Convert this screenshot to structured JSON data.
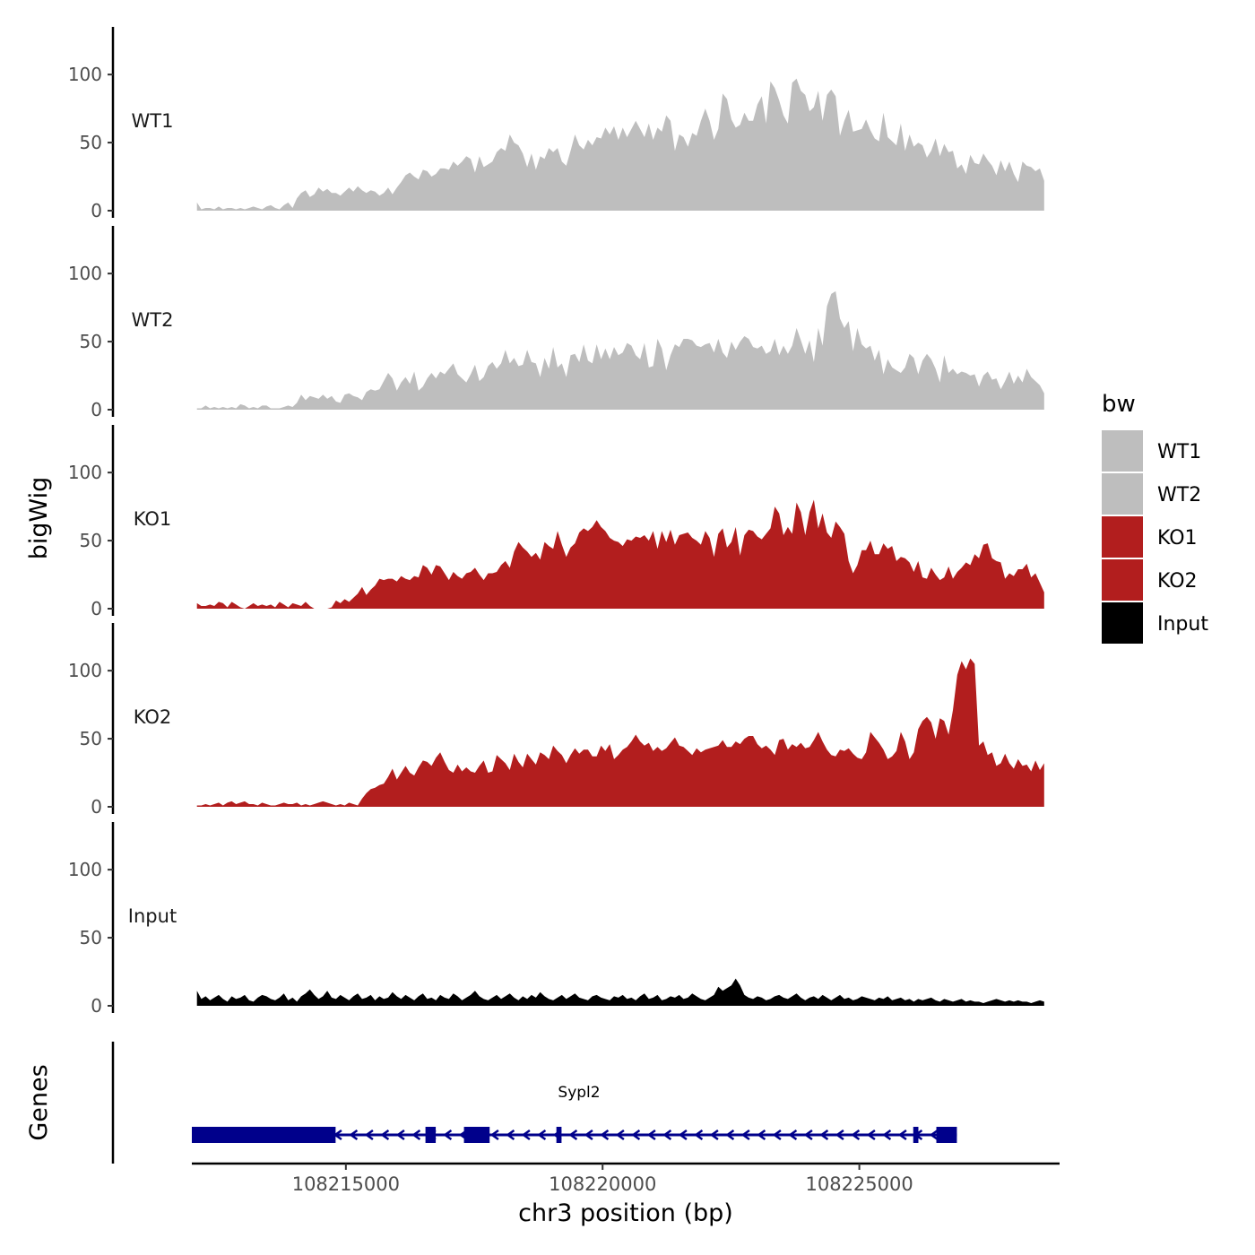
{
  "chart_data": {
    "type": "area",
    "ylabel": "bigWig",
    "xlabel": "chr3 position (bp)",
    "genes_label": "Genes",
    "legend_title": "bw",
    "y_ticks": [
      "0",
      "50",
      "100"
    ],
    "y_tick_values": [
      0,
      50,
      100
    ],
    "ylim": [
      0,
      135
    ],
    "xlim": [
      108212000,
      108228900
    ],
    "x_ticks": [
      "108215000",
      "108220000",
      "108225000"
    ],
    "x_tick_values": [
      108215000,
      108220000,
      108225000
    ],
    "signal_start": 108212100,
    "signal_end": 108228600,
    "colors": {
      "wt": "#BEBEBE",
      "ko": "#B21E1E",
      "input": "#000000",
      "gene": "#00008B"
    },
    "series": [
      {
        "name": "WT1",
        "color": "#BEBEBE",
        "values": [
          6,
          1,
          2,
          2,
          1,
          3,
          1,
          2,
          2,
          1,
          2,
          1,
          2,
          3,
          2,
          1,
          3,
          4,
          2,
          1,
          4,
          6,
          2,
          9,
          13,
          15,
          10,
          12,
          17,
          14,
          16,
          13,
          13,
          11,
          14,
          17,
          14,
          18,
          15,
          13,
          15,
          14,
          11,
          13,
          17,
          12,
          17,
          21,
          26,
          28,
          25,
          23,
          30,
          29,
          25,
          27,
          31,
          31,
          30,
          36,
          33,
          36,
          40,
          38,
          28,
          40,
          32,
          34,
          36,
          43,
          46,
          44,
          56,
          50,
          48,
          42,
          32,
          42,
          30,
          40,
          38,
          46,
          43,
          46,
          36,
          33,
          44,
          56,
          48,
          45,
          52,
          48,
          54,
          53,
          61,
          56,
          62,
          52,
          61,
          54,
          60,
          66,
          60,
          54,
          64,
          52,
          61,
          58,
          70,
          66,
          44,
          56,
          54,
          47,
          57,
          55,
          66,
          75,
          66,
          52,
          60,
          86,
          82,
          67,
          61,
          63,
          72,
          66,
          66,
          78,
          84,
          64,
          95,
          90,
          81,
          70,
          64,
          94,
          97,
          88,
          85,
          73,
          76,
          88,
          66,
          85,
          89,
          84,
          55,
          66,
          74,
          58,
          59,
          60,
          67,
          59,
          53,
          51,
          72,
          54,
          51,
          48,
          64,
          44,
          56,
          47,
          50,
          48,
          39,
          44,
          53,
          40,
          49,
          43,
          44,
          31,
          34,
          27,
          41,
          35,
          34,
          42,
          37,
          33,
          26,
          37,
          29,
          36,
          27,
          21,
          36,
          33,
          32,
          29,
          31,
          22
        ]
      },
      {
        "name": "WT2",
        "color": "#BEBEBE",
        "values": [
          1,
          1,
          3,
          1,
          2,
          1,
          2,
          1,
          2,
          1,
          4,
          3,
          1,
          2,
          1,
          3,
          3,
          1,
          1,
          1,
          2,
          3,
          2,
          5,
          11,
          7,
          10,
          9,
          8,
          11,
          8,
          10,
          6,
          5,
          11,
          12,
          10,
          9,
          7,
          13,
          15,
          14,
          15,
          21,
          27,
          23,
          14,
          20,
          24,
          19,
          28,
          14,
          17,
          23,
          27,
          23,
          28,
          26,
          30,
          34,
          26,
          23,
          20,
          26,
          33,
          21,
          24,
          32,
          35,
          30,
          34,
          44,
          34,
          38,
          32,
          33,
          44,
          35,
          34,
          24,
          38,
          30,
          46,
          31,
          34,
          24,
          40,
          41,
          35,
          48,
          36,
          34,
          48,
          37,
          45,
          37,
          46,
          40,
          42,
          49,
          47,
          40,
          37,
          49,
          31,
          32,
          52,
          45,
          29,
          40,
          48,
          46,
          52,
          52,
          51,
          47,
          46,
          48,
          49,
          42,
          52,
          42,
          38,
          50,
          44,
          50,
          54,
          52,
          46,
          45,
          47,
          41,
          43,
          52,
          40,
          47,
          41,
          47,
          60,
          51,
          41,
          51,
          35,
          60,
          47,
          76,
          85,
          87,
          67,
          60,
          65,
          43,
          60,
          48,
          45,
          47,
          36,
          44,
          26,
          37,
          31,
          29,
          27,
          31,
          41,
          38,
          26,
          36,
          41,
          37,
          30,
          20,
          40,
          27,
          30,
          26,
          28,
          27,
          25,
          26,
          17,
          25,
          28,
          22,
          23,
          15,
          21,
          28,
          19,
          25,
          20,
          30,
          24,
          21,
          18,
          12
        ]
      },
      {
        "name": "KO1",
        "color": "#B21E1E",
        "values": [
          4,
          2,
          2,
          3,
          2,
          5,
          4,
          1,
          5,
          3,
          1,
          0,
          2,
          4,
          2,
          3,
          2,
          3,
          1,
          5,
          3,
          1,
          4,
          3,
          2,
          5,
          2,
          0,
          0,
          0,
          0,
          1,
          6,
          4,
          7,
          5,
          8,
          11,
          16,
          10,
          14,
          17,
          22,
          21,
          22,
          22,
          20,
          24,
          22,
          21,
          24,
          23,
          32,
          30,
          25,
          32,
          31,
          26,
          21,
          27,
          24,
          22,
          26,
          27,
          30,
          25,
          21,
          26,
          26,
          27,
          32,
          35,
          30,
          42,
          49,
          45,
          42,
          38,
          41,
          36,
          49,
          46,
          44,
          57,
          47,
          38,
          45,
          48,
          56,
          59,
          57,
          60,
          65,
          60,
          57,
          52,
          50,
          49,
          46,
          51,
          50,
          53,
          52,
          54,
          50,
          57,
          44,
          57,
          49,
          58,
          47,
          54,
          55,
          56,
          52,
          50,
          47,
          57,
          52,
          38,
          55,
          59,
          45,
          49,
          60,
          39,
          54,
          58,
          57,
          53,
          51,
          55,
          59,
          75,
          70,
          54,
          60,
          55,
          78,
          71,
          54,
          71,
          80,
          59,
          70,
          56,
          52,
          64,
          60,
          55,
          35,
          26,
          32,
          43,
          43,
          50,
          40,
          40,
          48,
          44,
          46,
          35,
          38,
          37,
          34,
          27,
          35,
          23,
          22,
          30,
          25,
          21,
          23,
          31,
          22,
          27,
          30,
          34,
          32,
          40,
          37,
          47,
          48,
          37,
          35,
          34,
          22,
          26,
          24,
          29,
          29,
          33,
          23,
          26,
          19,
          12
        ]
      },
      {
        "name": "KO2",
        "color": "#B21E1E",
        "values": [
          1,
          1,
          2,
          1,
          2,
          3,
          1,
          3,
          4,
          2,
          3,
          4,
          2,
          2,
          1,
          3,
          2,
          1,
          1,
          2,
          3,
          2,
          2,
          3,
          1,
          2,
          1,
          2,
          3,
          4,
          3,
          2,
          1,
          2,
          1,
          3,
          2,
          1,
          6,
          10,
          13,
          14,
          16,
          17,
          22,
          28,
          20,
          25,
          30,
          25,
          23,
          29,
          34,
          33,
          30,
          36,
          40,
          33,
          27,
          25,
          31,
          26,
          29,
          26,
          25,
          30,
          34,
          25,
          26,
          38,
          35,
          32,
          27,
          39,
          33,
          29,
          39,
          35,
          31,
          40,
          38,
          35,
          45,
          41,
          38,
          32,
          38,
          43,
          39,
          42,
          42,
          37,
          37,
          45,
          41,
          46,
          35,
          38,
          42,
          44,
          48,
          53,
          48,
          45,
          47,
          41,
          44,
          41,
          43,
          47,
          51,
          45,
          44,
          41,
          38,
          43,
          40,
          42,
          43,
          44,
          45,
          49,
          44,
          44,
          48,
          46,
          50,
          52,
          52,
          46,
          43,
          45,
          42,
          38,
          49,
          50,
          42,
          46,
          44,
          47,
          43,
          44,
          49,
          55,
          48,
          42,
          38,
          37,
          42,
          41,
          43,
          39,
          36,
          35,
          40,
          55,
          51,
          47,
          42,
          35,
          37,
          41,
          55,
          48,
          35,
          40,
          57,
          63,
          66,
          62,
          50,
          65,
          63,
          53,
          71,
          97,
          107,
          101,
          109,
          105,
          45,
          48,
          38,
          40,
          30,
          32,
          39,
          32,
          28,
          35,
          30,
          31,
          26,
          34,
          27,
          32
        ]
      },
      {
        "name": "Input",
        "color": "#000000",
        "values": [
          11,
          5,
          7,
          4,
          6,
          8,
          5,
          3,
          7,
          5,
          6,
          8,
          4,
          3,
          6,
          8,
          7,
          5,
          4,
          6,
          9,
          4,
          6,
          3,
          7,
          9,
          12,
          8,
          5,
          7,
          11,
          6,
          5,
          8,
          6,
          4,
          7,
          9,
          5,
          6,
          8,
          4,
          7,
          5,
          6,
          10,
          7,
          5,
          8,
          6,
          4,
          7,
          9,
          5,
          6,
          4,
          8,
          6,
          5,
          9,
          7,
          4,
          6,
          8,
          11,
          7,
          5,
          4,
          6,
          8,
          5,
          7,
          9,
          6,
          4,
          7,
          5,
          8,
          6,
          10,
          7,
          5,
          4,
          6,
          8,
          5,
          7,
          9,
          6,
          5,
          4,
          7,
          8,
          6,
          5,
          4,
          7,
          6,
          8,
          5,
          6,
          4,
          7,
          9,
          5,
          6,
          8,
          4,
          5,
          7,
          6,
          8,
          5,
          6,
          9,
          7,
          5,
          4,
          6,
          8,
          14,
          11,
          13,
          15,
          20,
          15,
          8,
          6,
          5,
          7,
          6,
          4,
          5,
          7,
          8,
          6,
          5,
          7,
          9,
          6,
          4,
          6,
          7,
          5,
          8,
          6,
          4,
          6,
          8,
          5,
          6,
          4,
          5,
          7,
          6,
          5,
          4,
          6,
          5,
          7,
          4,
          5,
          6,
          4,
          5,
          3,
          5,
          4,
          5,
          6,
          4,
          3,
          5,
          4,
          3,
          4,
          5,
          3,
          4,
          3,
          3,
          2,
          3,
          4,
          5,
          4,
          3,
          4,
          3,
          4,
          3,
          3,
          2,
          3,
          4,
          3
        ]
      }
    ],
    "gene": {
      "name": "Sypl2",
      "strand": "-",
      "start": 108212000,
      "end": 108226900,
      "exons": [
        {
          "start": 108212000,
          "end": 108214800,
          "thick": true
        },
        {
          "start": 108216550,
          "end": 108216750,
          "thick": true
        },
        {
          "start": 108217300,
          "end": 108217800,
          "thick": true
        },
        {
          "start": 108219100,
          "end": 108219200,
          "thick": true
        },
        {
          "start": 108226050,
          "end": 108226150,
          "thick": true
        },
        {
          "start": 108226500,
          "end": 108226900,
          "thick": true
        }
      ]
    },
    "legend": [
      {
        "label": "WT1",
        "color": "#BEBEBE"
      },
      {
        "label": "WT2",
        "color": "#BEBEBE"
      },
      {
        "label": "KO1",
        "color": "#B21E1E"
      },
      {
        "label": "KO2",
        "color": "#B21E1E"
      },
      {
        "label": "Input",
        "color": "#000000"
      }
    ]
  }
}
